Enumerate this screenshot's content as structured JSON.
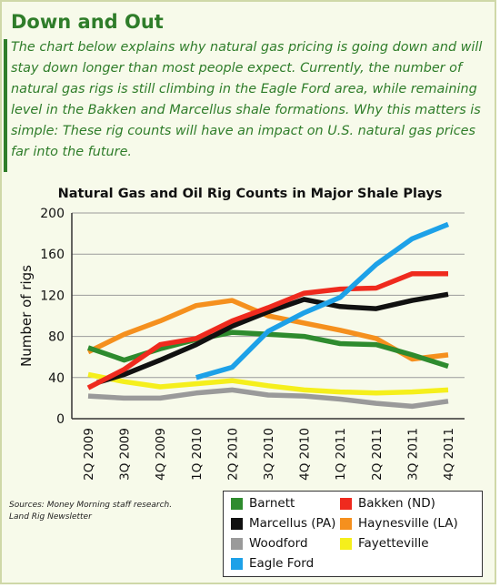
{
  "header": {
    "title": "Down and Out",
    "intro": "The chart below explains why natural gas pricing is going down and will stay down longer than most people expect. Currently, the number of natural gas rigs is still climbing in the Eagle Ford area, while remaining level in the Bakken and Marcellus shale formations. Why this matters is simple: These rig counts will have an impact on U.S. natural gas prices far into the future."
  },
  "sources": {
    "line1": "Sources: Money Morning staff research.",
    "line2": "Land Rig Newsletter"
  },
  "chart_data": {
    "type": "line",
    "title": "Natural Gas and Oil Rig Counts in Major Shale Plays",
    "xlabel": "",
    "ylabel": "Number of rigs",
    "ylim": [
      0,
      200
    ],
    "yticks": [
      0,
      40,
      80,
      120,
      160,
      200
    ],
    "grid": true,
    "legend_position": "bottom-right",
    "categories": [
      "2Q 2009",
      "3Q 2009",
      "4Q 2009",
      "1Q 2010",
      "2Q 2010",
      "3Q 2010",
      "4Q 2010",
      "1Q 2011",
      "2Q 2011",
      "3Q 2011",
      "4Q 2011"
    ],
    "series": [
      {
        "name": "Barnett",
        "color": "#2e8b2e",
        "x": [
          0,
          1,
          2,
          3,
          4,
          5,
          6,
          7,
          8,
          9,
          10
        ],
        "values": [
          69,
          57,
          68,
          77,
          84,
          82,
          80,
          73,
          72,
          62,
          51
        ]
      },
      {
        "name": "Bakken (ND)",
        "color": "#ef2a1e",
        "x": [
          0,
          1,
          2,
          3,
          4,
          5,
          6,
          7,
          8,
          9,
          10
        ],
        "values": [
          30,
          48,
          72,
          78,
          95,
          108,
          122,
          126,
          127,
          141,
          141
        ]
      },
      {
        "name": "Marcellus (PA)",
        "color": "#111111",
        "x": [
          0.25,
          1,
          2,
          3,
          4,
          5,
          6,
          7,
          8,
          9,
          10
        ],
        "values": [
          35,
          43,
          57,
          72,
          90,
          104,
          116,
          109,
          107,
          115,
          121
        ]
      },
      {
        "name": "Haynesville (LA)",
        "color": "#f5901e",
        "x": [
          0,
          1,
          2,
          3,
          4,
          5,
          6,
          7,
          8,
          9,
          10
        ],
        "values": [
          65,
          82,
          95,
          110,
          115,
          100,
          93,
          86,
          78,
          58,
          62
        ]
      },
      {
        "name": "Woodford",
        "color": "#9a9a9a",
        "x": [
          0,
          1,
          2,
          3,
          4,
          5,
          6,
          7,
          8,
          9,
          10
        ],
        "values": [
          22,
          20,
          20,
          25,
          28,
          23,
          22,
          19,
          15,
          12,
          17
        ]
      },
      {
        "name": "Fayetteville",
        "color": "#f5ef1c",
        "x": [
          0,
          1,
          2,
          3,
          4,
          5,
          6,
          7,
          8,
          9,
          10
        ],
        "values": [
          43,
          36,
          31,
          34,
          37,
          32,
          28,
          26,
          25,
          26,
          28
        ]
      },
      {
        "name": "Eagle Ford",
        "color": "#1da1e8",
        "x": [
          3,
          4,
          5,
          6,
          7,
          8,
          9,
          10
        ],
        "values": [
          40,
          50,
          85,
          103,
          118,
          150,
          175,
          189
        ]
      }
    ]
  }
}
